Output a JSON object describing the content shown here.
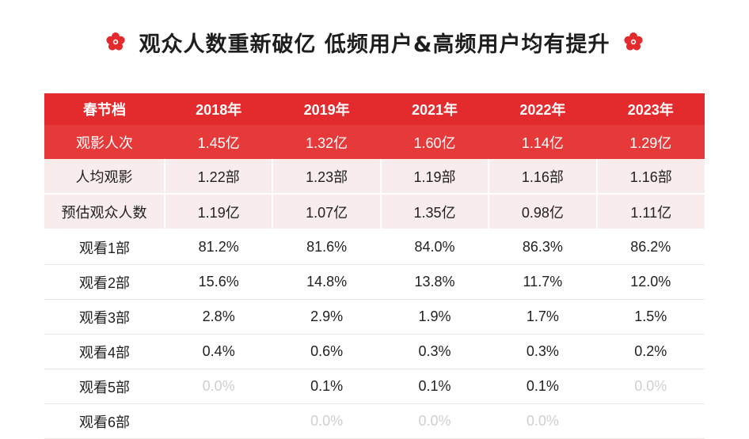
{
  "title": "观众人数重新破亿 低频用户&高频用户均有提升",
  "colors": {
    "header_red": "#e32a2c",
    "highlight_red": "#e6393a",
    "pink_row": "#f9ecec",
    "muted_value": "#cfcfcf"
  },
  "icons": {
    "left": "red-flower-icon",
    "right": "red-flower-icon"
  },
  "chart_data": {
    "type": "table",
    "header": [
      "春节档",
      "2018年",
      "2019年",
      "2021年",
      "2022年",
      "2023年"
    ],
    "rows": [
      {
        "label": "观影人次",
        "values": [
          "1.45亿",
          "1.32亿",
          "1.60亿",
          "1.14亿",
          "1.29亿"
        ],
        "style": "highlight"
      },
      {
        "label": "人均观影",
        "values": [
          "1.22部",
          "1.23部",
          "1.19部",
          "1.16部",
          "1.16部"
        ],
        "style": "pink"
      },
      {
        "label": "预估观众人数",
        "values": [
          "1.19亿",
          "1.07亿",
          "1.35亿",
          "0.98亿",
          "1.11亿"
        ],
        "style": "pink"
      },
      {
        "label": "观看1部",
        "values": [
          "81.2%",
          "81.6%",
          "84.0%",
          "86.3%",
          "86.2%"
        ],
        "style": "plain"
      },
      {
        "label": "观看2部",
        "values": [
          "15.6%",
          "14.8%",
          "13.8%",
          "11.7%",
          "12.0%"
        ],
        "style": "plain"
      },
      {
        "label": "观看3部",
        "values": [
          "2.8%",
          "2.9%",
          "1.9%",
          "1.7%",
          "1.5%"
        ],
        "style": "plain"
      },
      {
        "label": "观看4部",
        "values": [
          "0.4%",
          "0.6%",
          "0.3%",
          "0.3%",
          "0.2%"
        ],
        "style": "plain"
      },
      {
        "label": "观看5部",
        "values": [
          "0.0%",
          "0.1%",
          "0.1%",
          "0.1%",
          "0.0%"
        ],
        "muted": [
          true,
          false,
          false,
          false,
          true
        ],
        "style": "plain"
      },
      {
        "label": "观看6部",
        "values": [
          "",
          "0.0%",
          "0.0%",
          "0.0%",
          ""
        ],
        "muted": [
          true,
          true,
          true,
          true,
          true
        ],
        "style": "plain"
      }
    ]
  }
}
